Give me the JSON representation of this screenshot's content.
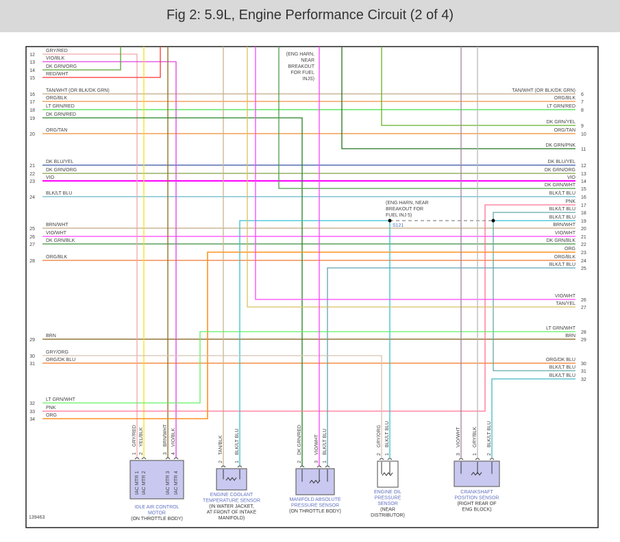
{
  "title": "Fig 2: 5.9L, Engine Performance Circuit (2 of 4)",
  "diagram_id": "139463",
  "left_circuits": [
    {
      "num": "12",
      "label": "GRY/RED",
      "color": "#f0a8a8"
    },
    {
      "num": "13",
      "label": "VIO/BLK",
      "color": "#e040e0"
    },
    {
      "num": "14",
      "label": "DK GRN/ORG",
      "color": "#58a030"
    },
    {
      "num": "15",
      "label": "RED/WHT",
      "color": "#ff3030"
    },
    {
      "num": "16",
      "label": "TAN/WHT (OR BLK/DK GRN)",
      "color": "#c0a880"
    },
    {
      "num": "17",
      "label": "ORG/BLK",
      "color": "#f09040"
    },
    {
      "num": "18",
      "label": "LT GRN/RED",
      "color": "#40e040"
    },
    {
      "num": "19",
      "label": "DK GRN/RED",
      "color": "#208020"
    },
    {
      "num": "20",
      "label": "ORG/TAN",
      "color": "#f08c30"
    },
    {
      "num": "21",
      "label": "DK BLU/YEL",
      "color": "#3050a0"
    },
    {
      "num": "22",
      "label": "DK GRN/ORG",
      "color": "#80a040"
    },
    {
      "num": "23",
      "label": "VIO",
      "color": "#ff00ff"
    },
    {
      "num": "24",
      "label": "BLK/LT BLU",
      "color": "#60b8c8"
    },
    {
      "num": "25",
      "label": "BRN/WHT",
      "color": "#c0a880"
    },
    {
      "num": "26",
      "label": "VIO/WHT",
      "color": "#ff40ff"
    },
    {
      "num": "27",
      "label": "DK GRN/BLK",
      "color": "#3a8a3a"
    },
    {
      "num": "28",
      "label": "ORG/BLK",
      "color": "#f07830"
    },
    {
      "num": "29",
      "label": "BRN",
      "color": "#7a5a10"
    },
    {
      "num": "30",
      "label": "GRY/ORG",
      "color": "#d8c0b0"
    },
    {
      "num": "31",
      "label": "ORG/DK BLU",
      "color": "#f07820"
    },
    {
      "num": "32",
      "label": "LT GRN/WHT",
      "color": "#60f060"
    },
    {
      "num": "33",
      "label": "PNK",
      "color": "#ff7090"
    },
    {
      "num": "34",
      "label": "ORG",
      "color": "#ff9020"
    }
  ],
  "right_circuits": [
    {
      "num": "6",
      "label": "TAN/WHT (OR BLK/DK GRN)"
    },
    {
      "num": "7",
      "label": "ORG/BLK"
    },
    {
      "num": "8",
      "label": "LT GRN/RED"
    },
    {
      "num": "9",
      "label": "DK GRN/YEL",
      "color": "#60b020"
    },
    {
      "num": "10",
      "label": "ORG/TAN"
    },
    {
      "num": "11",
      "label": "DK GRN/PNK",
      "color": "#207020"
    },
    {
      "num": "12",
      "label": "DK BLU/YEL"
    },
    {
      "num": "13",
      "label": "DK GRN/ORG"
    },
    {
      "num": "14",
      "label": "VIO"
    },
    {
      "num": "15",
      "label": "DK GRN/WHT",
      "color": "#4a9a4a"
    },
    {
      "num": "16",
      "label": "BLK/LT BLU"
    },
    {
      "num": "17",
      "label": "PNK",
      "color": "#ff7090"
    },
    {
      "num": "18",
      "label": "BLK/LT BLU",
      "color": "#60a8a8"
    },
    {
      "num": "19",
      "label": "BLK/LT BLU",
      "color": "#30c0d0"
    },
    {
      "num": "20",
      "label": "BRN/WHT"
    },
    {
      "num": "21",
      "label": "VIO/WHT"
    },
    {
      "num": "22",
      "label": "DK GRN/BLK"
    },
    {
      "num": "23",
      "label": "ORG",
      "color": "#ff9020"
    },
    {
      "num": "24",
      "label": "ORG/BLK"
    },
    {
      "num": "25",
      "label": "BLK/LT BLU",
      "color": "#60a0b0"
    },
    {
      "num": "26",
      "label": "VIO/WHT",
      "color": "#ff40ff"
    },
    {
      "num": "27",
      "label": "TAN/YEL",
      "color": "#d8c060"
    },
    {
      "num": "28",
      "label": "LT GRN/WHT",
      "color": "#60f060"
    },
    {
      "num": "29",
      "label": "BRN"
    },
    {
      "num": "30",
      "label": "ORG/DK BLU"
    },
    {
      "num": "31",
      "label": "BLK/LT BLU",
      "color": "#60a8a8"
    },
    {
      "num": "32",
      "label": "BLK/LT BLU",
      "color": "#40b8c0"
    }
  ],
  "notes": {
    "top_note": [
      "(ENG HARN,",
      "NEAR",
      "BREAKOUT",
      "FOR FUEL",
      "INJS)"
    ],
    "splice_note": [
      "(ENG HARN, NEAR",
      "BREAKOUT FOR",
      "FUEL INJ 5)"
    ],
    "splice_id": "S121"
  },
  "extra_wire_colors": {
    "yel_blk": "#f0e020",
    "brn_wht": "#8b6914",
    "tan_blk": "#c8b48c",
    "vio_wht": "#ff40ff",
    "gry_blk": "#b8b8b8",
    "ckp_vio_wht": "#a080a0",
    "dash": "#888888"
  },
  "components": [
    {
      "name": "IDLE AIR CONTROL MOTOR",
      "title": [
        "IDLE AIR CONTROL",
        "MOTOR"
      ],
      "location": [
        "(ON THROTTLE BODY)"
      ],
      "fill": "#c8c8f0",
      "pins": [
        {
          "n": "1",
          "wire": "GRY/RED",
          "inner": "IAC MTR 1"
        },
        {
          "n": "2",
          "wire": "YEL/BLK",
          "inner": "IAC MTR 2"
        },
        {
          "n": "3",
          "wire": "BRN/WHT",
          "inner": "IAC MTR 3"
        },
        {
          "n": "4",
          "wire": "VIO/BLK",
          "inner": "IAC MTR 4"
        }
      ]
    },
    {
      "name": "ENGINE COOLANT TEMPERATURE SENSOR",
      "title": [
        "ENGINE COOLANT",
        "TEMPERATURE SENSOR"
      ],
      "location": [
        "(IN WATER JACKET,",
        "AT FRONT OF INTAKE",
        "MANIFOLD)"
      ],
      "fill": "#c8c8f0",
      "pins": [
        {
          "n": "2",
          "wire": "TAN/BLK"
        },
        {
          "n": "1",
          "wire": "BLK/LT BLU"
        }
      ]
    },
    {
      "name": "MANIFOLD ABSOLUTE PRESSURE SENSOR",
      "title": [
        "MANIFOLD ABSOLUTE",
        "PRESSURE SENSOR"
      ],
      "location": [
        "(ON THROTTLE BODY)"
      ],
      "fill": "#c8c8f0",
      "pins": [
        {
          "n": "2",
          "wire": "DK GRN/RED"
        },
        {
          "n": "3",
          "wire": "VIO/WHT"
        },
        {
          "n": "1",
          "wire": "BLK/LT BLU"
        }
      ]
    },
    {
      "name": "ENGINE OIL PRESSURE SENSOR",
      "title": [
        "ENGINE OIL",
        "PRESSURE",
        "SENSOR"
      ],
      "location": [
        "(NEAR",
        "DISTRIBUTOR)"
      ],
      "fill": "#ffffff",
      "pins": [
        {
          "n": "2",
          "wire": "GRY/ORG"
        },
        {
          "n": "1",
          "wire": "BLK/LT BLU"
        }
      ]
    },
    {
      "name": "CRANKSHAFT POSITION SENSOR",
      "title": [
        "CRANKSHAFT",
        "POSITION SENSOR"
      ],
      "location": [
        "(RIGHT REAR OF",
        "ENG BLOCK)"
      ],
      "fill": "#c8c8f0",
      "pins": [
        {
          "n": "3",
          "wire": "VIO/WHT"
        },
        {
          "n": "1",
          "wire": "GRY/BLK"
        },
        {
          "n": "2",
          "wire": "BLK/LT BLU"
        }
      ]
    }
  ]
}
